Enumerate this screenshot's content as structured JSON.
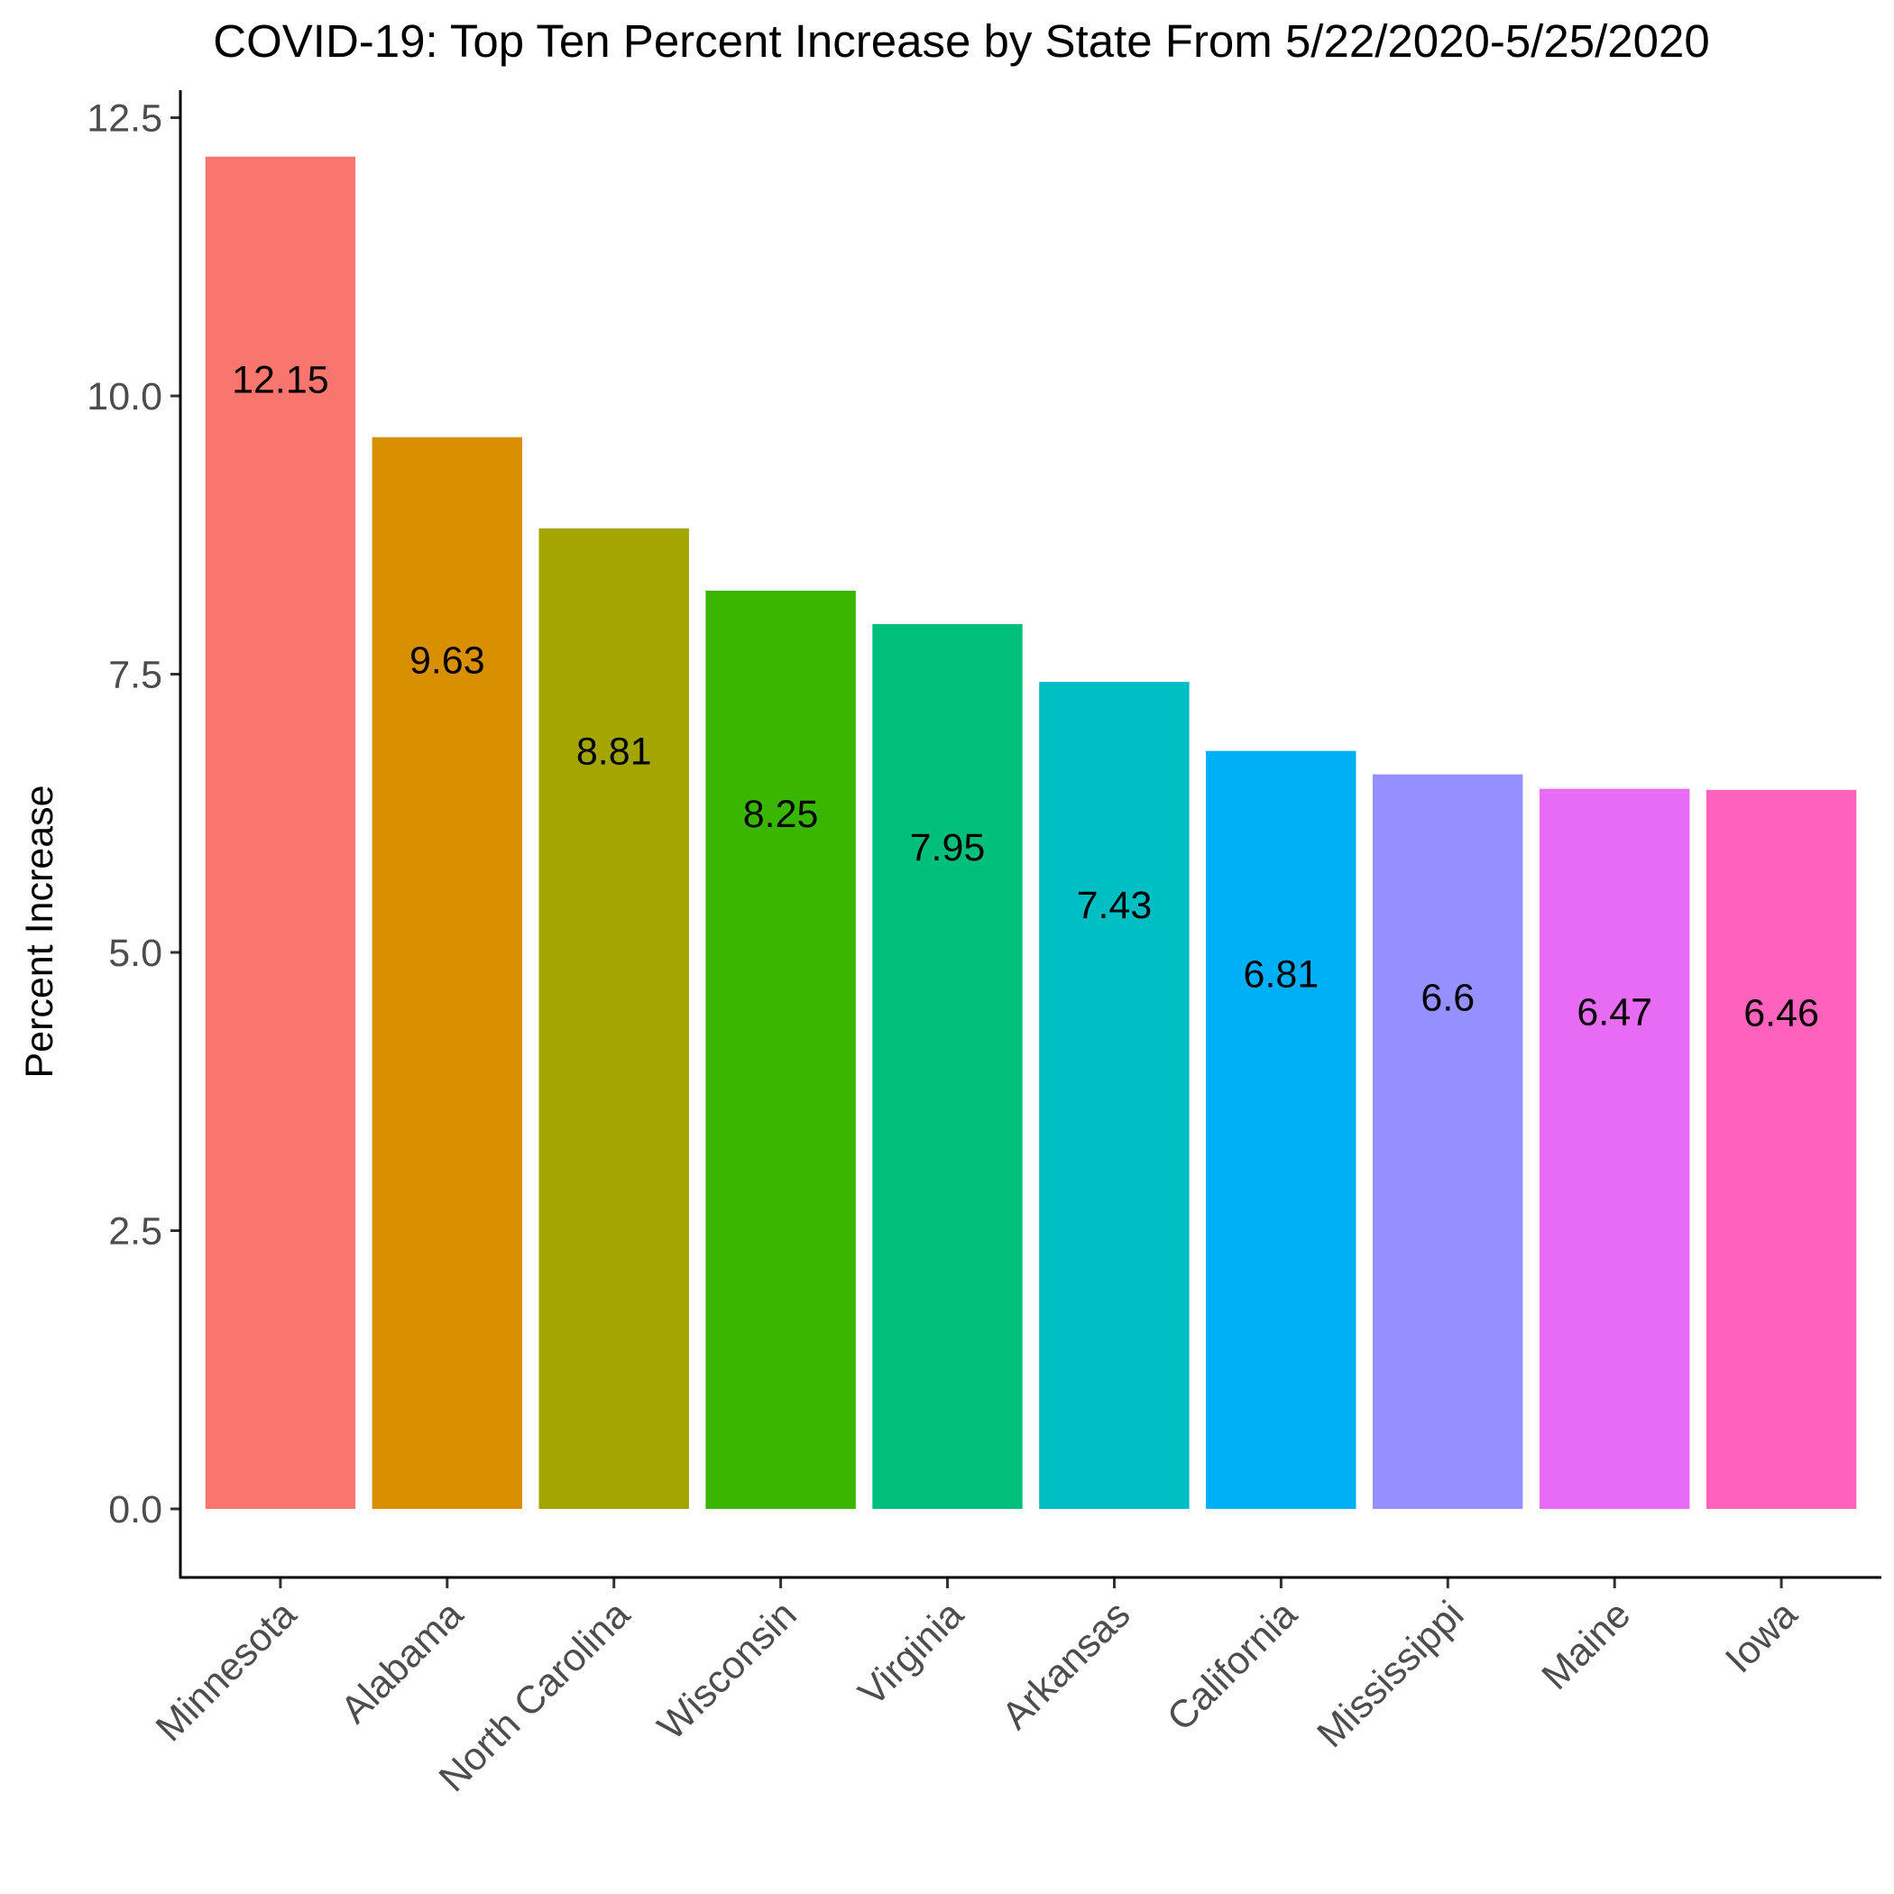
{
  "chart_data": {
    "type": "bar",
    "title": "COVID-19: Top Ten Percent Increase by State From 5/22/2020-5/25/2020",
    "xlabel": "",
    "ylabel": "Percent Increase",
    "ylim": [
      -0.6,
      12.8
    ],
    "yticks": [
      0.0,
      2.5,
      5.0,
      7.5,
      10.0,
      12.5
    ],
    "ytick_labels": [
      "0.0",
      "2.5",
      "5.0",
      "7.5",
      "10.0",
      "12.5"
    ],
    "grid": false,
    "legend": "none",
    "categories": [
      "Minnesota",
      "Alabama",
      "North Carolina",
      "Wisconsin",
      "Virginia",
      "Arkansas",
      "California",
      "Mississippi",
      "Maine",
      "Iowa"
    ],
    "values": [
      12.15,
      9.63,
      8.81,
      8.25,
      7.95,
      7.43,
      6.81,
      6.6,
      6.47,
      6.46
    ],
    "data_labels": [
      "12.15",
      "9.63",
      "8.81",
      "8.25",
      "7.95",
      "7.43",
      "6.81",
      "6.6",
      "6.47",
      "6.46"
    ],
    "colors": [
      "#F8766D",
      "#D89000",
      "#A3A500",
      "#39B600",
      "#00BF7D",
      "#00BFC4",
      "#00B0F6",
      "#9590FF",
      "#E76BF3",
      "#FF62BC"
    ]
  }
}
